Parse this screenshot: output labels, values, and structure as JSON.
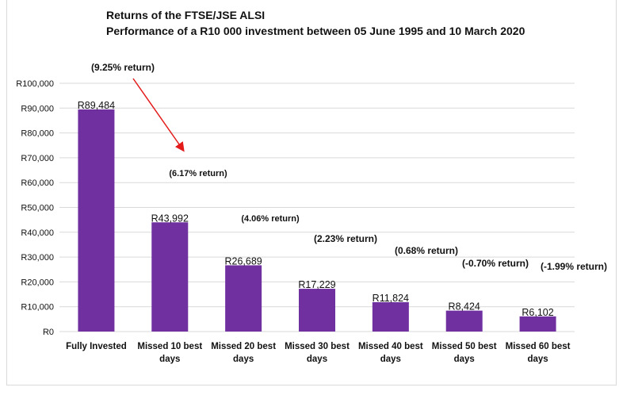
{
  "title": "Returns of the FTSE/JSE ALSI",
  "subtitle": "Performance of a R10 000 investment between 05 June 1995 and 10 March 2020",
  "colors": {
    "bar": "#7030a0",
    "arrow": "#e31b1b",
    "grid": "#d9d9d9",
    "text": "#111111"
  },
  "chart_data": {
    "type": "bar",
    "title": "Returns of the FTSE/JSE ALSI",
    "subtitle": "Performance of a R10 000 investment between 05 June 1995 and 10 March 2020",
    "categories": [
      [
        "Fully Invested"
      ],
      [
        "Missed 10 best",
        "days"
      ],
      [
        "Missed 20 best",
        "days"
      ],
      [
        "Missed 30 best",
        "days"
      ],
      [
        "Missed 40 best",
        "days"
      ],
      [
        "Missed 50 best",
        "days"
      ],
      [
        "Missed 60 best",
        "days"
      ]
    ],
    "values": [
      89484,
      43992,
      26689,
      17229,
      11824,
      8424,
      6102
    ],
    "value_labels": [
      "R89,484",
      "R43,992",
      "R26,689",
      "R17,229",
      "R11,824",
      "R8,424",
      "R6,102"
    ],
    "return_labels": [
      "(9.25% return)",
      "(6.17% return)",
      "(4.06% return)",
      "(2.23% return)",
      "(0.68% return)",
      "(-0.70% return)",
      "(-1.99% return)"
    ],
    "ylim": [
      0,
      100000
    ],
    "yticks": [
      0,
      10000,
      20000,
      30000,
      40000,
      50000,
      60000,
      70000,
      80000,
      90000,
      100000
    ],
    "ytick_labels": [
      "R0",
      "R10,000",
      "R20,000",
      "R30,000",
      "R40,000",
      "R50,000",
      "R60,000",
      "R70,000",
      "R80,000",
      "R90,000",
      "R100,000"
    ],
    "grid": true,
    "legend": "none",
    "annotation": "arrow from first return label toward second"
  }
}
